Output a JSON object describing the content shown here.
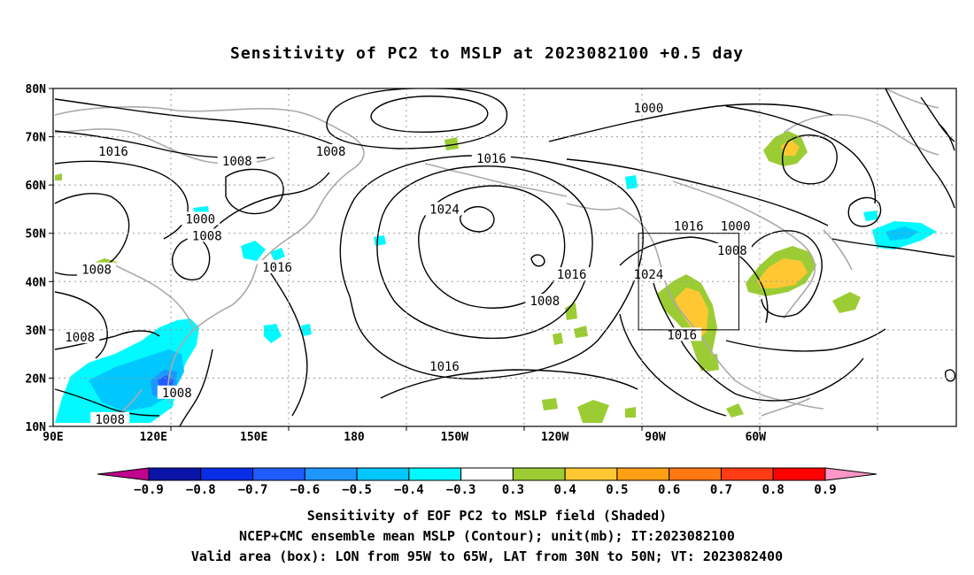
{
  "title": "Sensitivity of PC2 to MSLP at 2023082100 +0.5 day",
  "lat_labels": [
    "80N",
    "70N",
    "60N",
    "50N",
    "40N",
    "30N",
    "20N",
    "10N"
  ],
  "lon_labels": [
    "90E",
    "120E",
    "150E",
    "180",
    "150W",
    "120W",
    "90W",
    "60W"
  ],
  "contour_labels": [
    {
      "text": "1016",
      "lon": 108,
      "lat": 67
    },
    {
      "text": "1008",
      "lon": 145,
      "lat": 65
    },
    {
      "text": "1008",
      "lon": 173,
      "lat": 67
    },
    {
      "text": "1016",
      "lon": -139,
      "lat": 65.5
    },
    {
      "text": "1000",
      "lon": -92,
      "lat": 76
    },
    {
      "text": "1024",
      "lon": -153,
      "lat": 55
    },
    {
      "text": "1000",
      "lon": 134,
      "lat": 53
    },
    {
      "text": "1008",
      "lon": 136,
      "lat": 49.5
    },
    {
      "text": "1008",
      "lon": 103,
      "lat": 42.5
    },
    {
      "text": "1016",
      "lon": 157,
      "lat": 43
    },
    {
      "text": "1016",
      "lon": -80,
      "lat": 51.5
    },
    {
      "text": "1000",
      "lon": -66,
      "lat": 51.5
    },
    {
      "text": "1008",
      "lon": -67,
      "lat": 46.5
    },
    {
      "text": "1016",
      "lon": -115,
      "lat": 41.5
    },
    {
      "text": "1024",
      "lon": -92,
      "lat": 41.5
    },
    {
      "text": "1008",
      "lon": -123,
      "lat": 36
    },
    {
      "text": "1008",
      "lon": 98,
      "lat": 28.5
    },
    {
      "text": "1016",
      "lon": -153,
      "lat": 22.5
    },
    {
      "text": "1016",
      "lon": -82,
      "lat": 29
    },
    {
      "text": "1008",
      "lon": 127,
      "lat": 17
    },
    {
      "text": "1008",
      "lon": 107,
      "lat": 11.5
    }
  ],
  "valid_box": {
    "lon_min": -95,
    "lon_max": -65,
    "lat_min": 30,
    "lat_max": 50
  },
  "colorbar": {
    "labels": [
      "-0.9",
      "-0.8",
      "-0.7",
      "-0.6",
      "-0.5",
      "-0.4",
      "-0.3",
      "0.3",
      "0.4",
      "0.5",
      "0.6",
      "0.7",
      "0.8",
      "0.9"
    ],
    "colors": [
      "#c0048c",
      "#0a14a8",
      "#0a2ee6",
      "#1e5cff",
      "#1e96ff",
      "#00c8ff",
      "#00faff",
      "#ffffff",
      "#9ccc34",
      "#ffc832",
      "#ffa014",
      "#ff7814",
      "#ff3c14",
      "#ff0000",
      "#ff96c8"
    ]
  },
  "caption": {
    "line1": "Sensitivity of EOF PC2 to MSLP field (Shaded)",
    "line2": "NCEP+CMC ensemble mean MSLP (Contour); unit(mb); IT:2023082100",
    "line3": "Valid area (box): LON from 95W to 65W, LAT from 30N to 50N; VT: 2023082400"
  }
}
